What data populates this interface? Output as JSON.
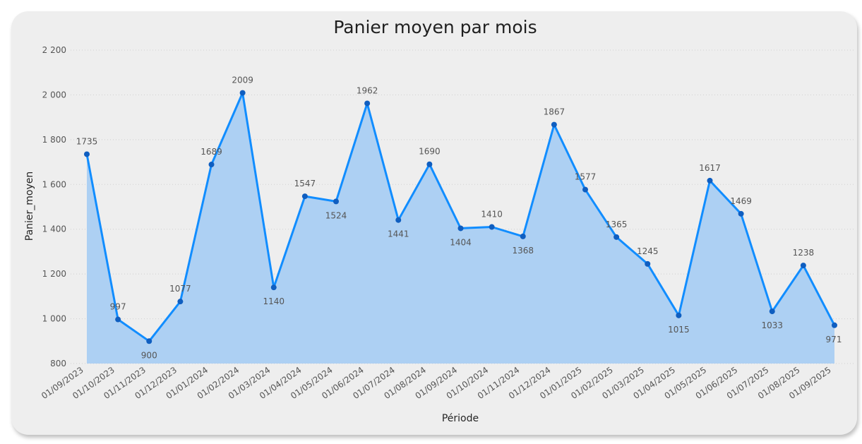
{
  "chart_data": {
    "type": "area",
    "title": "Panier moyen par mois",
    "xlabel": "Période",
    "ylabel": "Panier_moyen",
    "ylim": [
      800,
      2200
    ],
    "yticks": [
      800,
      1000,
      1200,
      1400,
      1600,
      1800,
      2000,
      2200
    ],
    "ytick_labels": [
      "800",
      "1 000",
      "1 200",
      "1 400",
      "1 600",
      "1 800",
      "2 000",
      "2 200"
    ],
    "categories": [
      "01/09/2023",
      "01/10/2023",
      "01/11/2023",
      "01/12/2023",
      "01/01/2024",
      "01/02/2024",
      "01/03/2024",
      "01/04/2024",
      "01/05/2024",
      "01/06/2024",
      "01/07/2024",
      "01/08/2024",
      "01/09/2024",
      "01/10/2024",
      "01/11/2024",
      "01/12/2024",
      "01/01/2025",
      "01/02/2025",
      "01/03/2025",
      "01/04/2025",
      "01/05/2025",
      "01/06/2025",
      "01/07/2025",
      "01/08/2025",
      "01/09/2025"
    ],
    "values": [
      1735,
      997,
      900,
      1077,
      1689,
      2009,
      1140,
      1547,
      1524,
      1962,
      1441,
      1690,
      1404,
      1410,
      1368,
      1867,
      1577,
      1365,
      1245,
      1015,
      1617,
      1469,
      1033,
      1238,
      971
    ],
    "label_pos": [
      "above",
      "above",
      "below",
      "above",
      "above",
      "above",
      "below",
      "above",
      "below",
      "above",
      "below",
      "above",
      "below",
      "above",
      "below",
      "above",
      "above",
      "above",
      "above",
      "below",
      "above",
      "above",
      "below",
      "above",
      "below"
    ],
    "grid": true,
    "colors": {
      "line": "#118DFF",
      "fill": "#ADD0F3",
      "marker": "#0F5EC0",
      "grid": "#d0d0d0"
    }
  }
}
